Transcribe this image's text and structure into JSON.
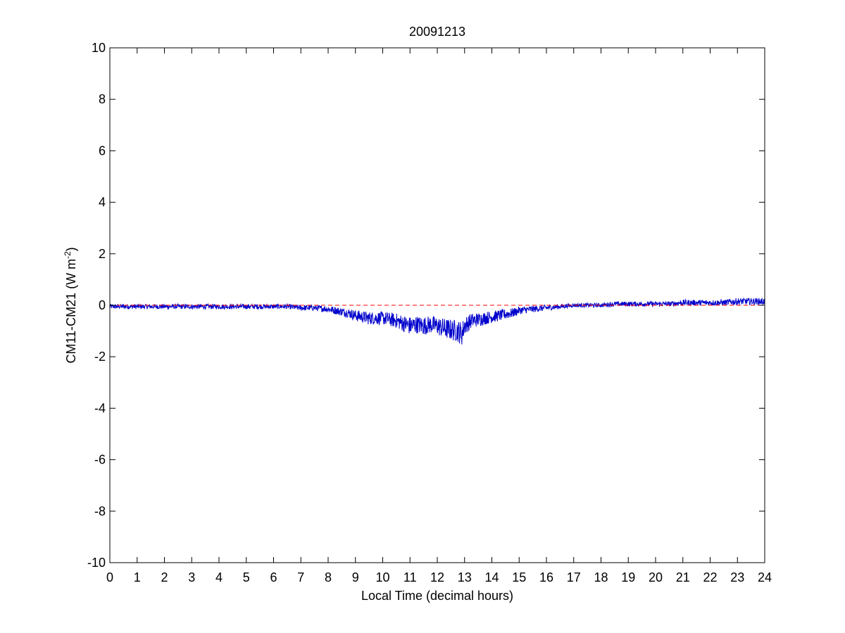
{
  "chart_data": {
    "type": "line",
    "title": "20091213",
    "xlabel": "Local Time (decimal hours)",
    "ylabel_main": "CM11-CM21 (W m",
    "ylabel_sup": "-2",
    "ylabel_close": ")",
    "xlim": [
      0,
      24
    ],
    "ylim": [
      -10,
      10
    ],
    "xticks": [
      0,
      1,
      2,
      3,
      4,
      5,
      6,
      7,
      8,
      9,
      10,
      11,
      12,
      13,
      14,
      15,
      16,
      17,
      18,
      19,
      20,
      21,
      22,
      23,
      24
    ],
    "yticks": [
      -10,
      -8,
      -6,
      -4,
      -2,
      0,
      2,
      4,
      6,
      8,
      10
    ],
    "grid": false,
    "series": [
      {
        "color": "#0000cc",
        "style": "solid",
        "x": [
          0,
          0.5,
          1,
          1.5,
          2,
          2.5,
          3,
          3.5,
          4,
          4.5,
          5,
          5.5,
          6,
          6.5,
          7,
          7.5,
          8,
          8.25,
          8.5,
          8.75,
          9,
          9.25,
          9.5,
          9.75,
          10,
          10.25,
          10.5,
          10.75,
          11,
          11.25,
          11.5,
          11.75,
          12,
          12.25,
          12.5,
          12.75,
          12.9,
          13,
          13.25,
          13.5,
          13.75,
          14,
          14.25,
          14.5,
          14.75,
          15,
          15.5,
          16,
          16.5,
          17,
          17.5,
          18,
          18.5,
          19,
          19.5,
          20,
          20.5,
          21,
          21.5,
          22,
          22.5,
          23,
          23.5,
          24
        ],
        "y": [
          -0.05,
          -0.05,
          -0.05,
          -0.05,
          -0.05,
          -0.05,
          -0.05,
          -0.05,
          -0.05,
          -0.05,
          -0.05,
          -0.05,
          -0.05,
          -0.05,
          -0.1,
          -0.1,
          -0.15,
          -0.2,
          -0.25,
          -0.3,
          -0.4,
          -0.45,
          -0.5,
          -0.5,
          -0.5,
          -0.55,
          -0.6,
          -0.7,
          -0.8,
          -0.75,
          -0.8,
          -0.75,
          -0.8,
          -0.9,
          -0.95,
          -1.0,
          -1.1,
          -0.8,
          -0.6,
          -0.55,
          -0.5,
          -0.45,
          -0.4,
          -0.35,
          -0.3,
          -0.2,
          -0.15,
          -0.1,
          -0.05,
          0.0,
          0.0,
          0.0,
          0.05,
          0.05,
          0.05,
          0.05,
          0.05,
          0.1,
          0.1,
          0.1,
          0.1,
          0.15,
          0.15,
          0.15
        ]
      },
      {
        "color": "#ff0000",
        "style": "dashed",
        "x": [
          0,
          24
        ],
        "y": [
          0,
          0
        ]
      }
    ]
  }
}
